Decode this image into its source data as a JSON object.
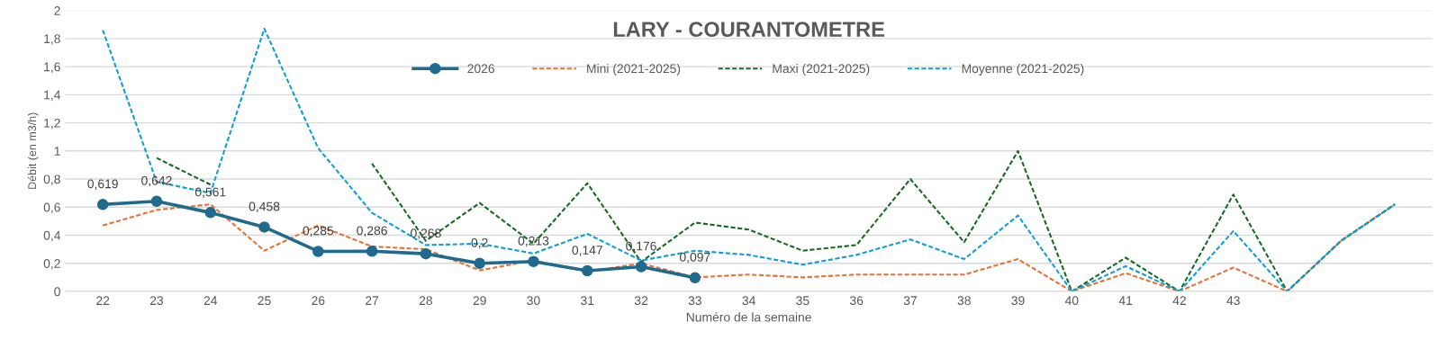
{
  "chart_data": {
    "type": "line",
    "title": "LARY - COURANTOMETRE",
    "xlabel": "Numéro de la semaine",
    "ylabel": "Débit (en m3/h)",
    "categories": [
      "22",
      "23",
      "24",
      "25",
      "26",
      "27",
      "28",
      "29",
      "30",
      "31",
      "32",
      "33",
      "34",
      "35",
      "36",
      "37",
      "38",
      "39",
      "40",
      "41",
      "42",
      "43",
      null,
      null,
      null
    ],
    "ylim": [
      0,
      2
    ],
    "yticks": [
      0,
      {
        "value": 0.2,
        "label": "0,2"
      },
      {
        "value": 0.4,
        "label": "0,4"
      },
      {
        "value": 0.6,
        "label": "0,6"
      },
      {
        "value": 0.8,
        "label": "0,8"
      },
      1,
      {
        "value": 1.2,
        "label": "1,2"
      },
      {
        "value": 1.4,
        "label": "1,4"
      },
      {
        "value": 1.6,
        "label": "1,6"
      },
      {
        "value": 1.8,
        "label": "1,8"
      },
      2
    ],
    "grid": "y",
    "legend": "top",
    "series": [
      {
        "name": "2026",
        "color": "#1f6a8e",
        "marker": "circle",
        "line_style": "solid",
        "values": [
          0.619,
          0.642,
          0.561,
          0.458,
          0.285,
          0.286,
          0.268,
          0.2,
          0.213,
          0.147,
          0.176,
          0.097,
          null,
          null,
          null,
          null,
          null,
          null,
          null,
          null,
          null,
          null,
          null,
          null,
          null
        ],
        "value_labels": [
          "0,619",
          "0,642",
          "0,561",
          "0,458",
          "0,285",
          "0,286",
          "0,268",
          "0,2",
          "0,213",
          "0,147",
          "0,176",
          "0,097",
          null,
          null,
          null,
          null,
          null,
          null,
          null,
          null,
          null,
          null,
          null,
          null,
          null
        ]
      },
      {
        "name": "Mini (2021-2025)",
        "color": "#e97132",
        "marker": "none",
        "line_style": "dashed",
        "values": [
          0.47,
          0.58,
          0.62,
          0.29,
          0.47,
          0.32,
          0.3,
          0.15,
          0.22,
          0.14,
          0.2,
          0.1,
          0.12,
          0.1,
          0.12,
          0.12,
          0.12,
          0.23,
          0,
          0.13,
          0,
          0.17,
          0,
          0.36,
          0.62
        ]
      },
      {
        "name": "Maxi (2021-2025)",
        "color": "#196b24",
        "marker": "none",
        "line_style": "dashed",
        "values": [
          null,
          0.95,
          0.76,
          null,
          null,
          0.91,
          0.36,
          0.63,
          0.34,
          0.77,
          0.21,
          0.49,
          0.44,
          0.29,
          0.33,
          0.8,
          0.35,
          1.0,
          0,
          0.24,
          0,
          0.69,
          0,
          0.36,
          0.62
        ]
      },
      {
        "name": "Moyenne (2021-2025)",
        "color": "#0f9ed5",
        "marker": "none",
        "line_style": "dashed",
        "values": [
          1.86,
          0.78,
          0.7,
          1.87,
          1.02,
          0.56,
          0.33,
          0.34,
          0.27,
          0.41,
          0.22,
          0.29,
          0.26,
          0.19,
          0.26,
          0.37,
          0.23,
          0.54,
          0,
          0.18,
          0,
          0.43,
          0,
          0.36,
          0.62
        ]
      }
    ]
  }
}
